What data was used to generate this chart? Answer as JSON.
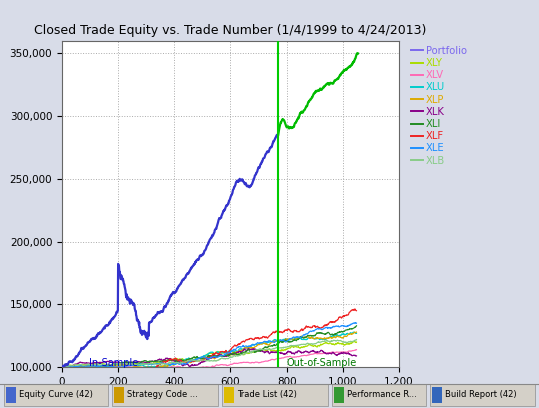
{
  "title": "Closed Trade Equity vs. Trade Number (1/4/1999 to 4/24/2013)",
  "xlim": [
    0,
    1200
  ],
  "ylim": [
    100000,
    360000
  ],
  "xtick_vals": [
    0,
    200,
    400,
    600,
    800,
    1000,
    1200
  ],
  "xtick_labels": [
    "0",
    "200",
    "400",
    "600",
    "800",
    "1,000",
    "1,200"
  ],
  "ytick_vals": [
    100000,
    150000,
    200000,
    250000,
    300000,
    350000
  ],
  "ytick_labels": [
    "100,000",
    "150,000",
    "200,000",
    "250,000",
    "300,000",
    "350,000"
  ],
  "insample_split": 770,
  "vline_color": "#00cc00",
  "background_color": "#d8dce8",
  "plot_bg_color": "#ffffff",
  "grid_color": "#aaaaaa",
  "portfolio_color_in": "#3333cc",
  "portfolio_color_out": "#00bb00",
  "insample_label": "In-Sample",
  "insample_label_color": "#0000cc",
  "outsample_label": "Out-of-Sample",
  "outsample_label_color": "#007700",
  "title_fontsize": 9,
  "tick_fontsize": 7.5,
  "legend_colors": [
    "#7b68ee",
    "#aadd00",
    "#ff69b4",
    "#00cccc",
    "#ddaa00",
    "#880088",
    "#228b22",
    "#ee2222",
    "#1e90ff",
    "#88cc88"
  ],
  "legend_labels": [
    "Portfolio",
    "XLY",
    "XLV",
    "XLU",
    "XLP",
    "XLK",
    "XLI",
    "XLF",
    "XLE",
    "XLB"
  ],
  "taskbar_items": [
    "Equity Curve (42)",
    "Strategy Code ...",
    "Trade List (42)",
    "Performance R...",
    "Build Report (42)"
  ]
}
